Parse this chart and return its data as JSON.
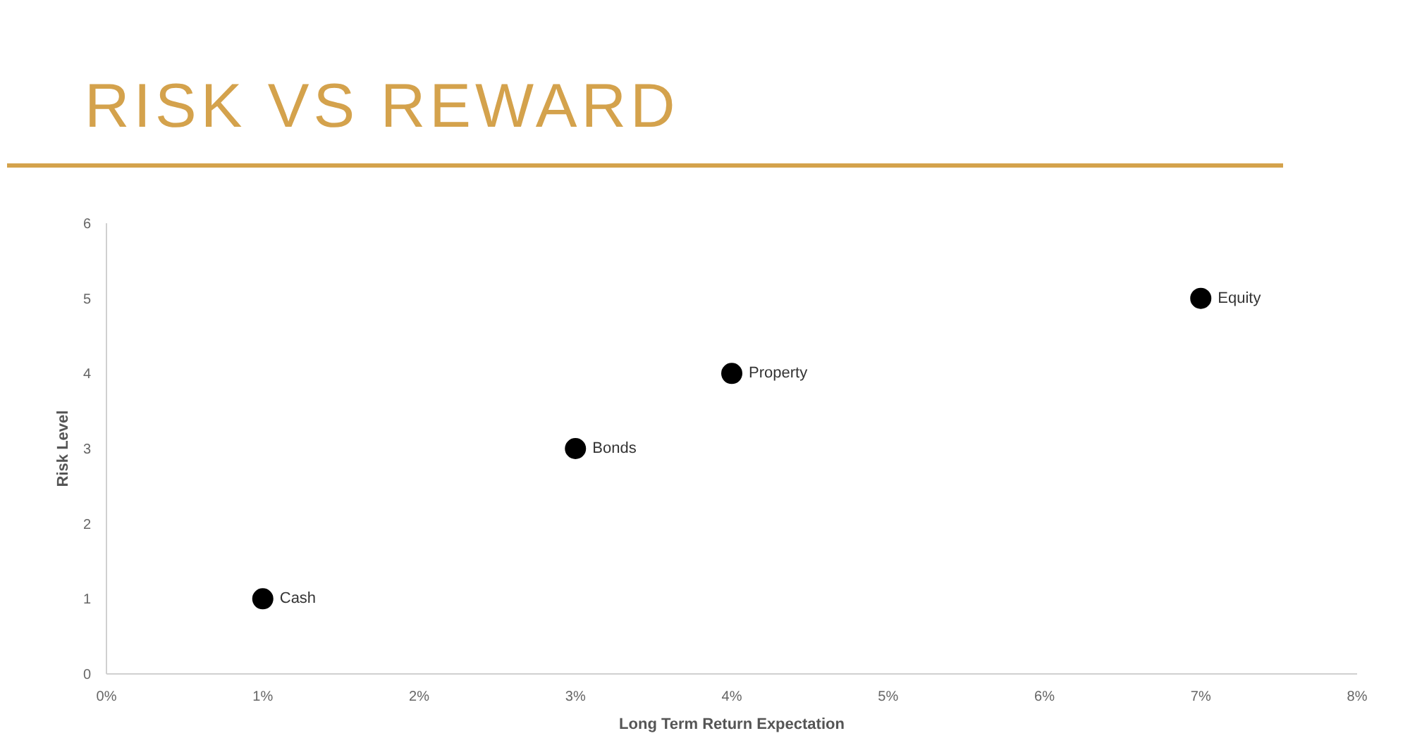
{
  "chart_data": {
    "type": "scatter",
    "title": "RISK VS REWARD",
    "xlabel": "Long Term Return Expectation",
    "ylabel": "Risk Level",
    "x": [
      1,
      3,
      4,
      7
    ],
    "series": [
      {
        "color": "#000000",
        "values": [
          1,
          3,
          4,
          5
        ]
      }
    ],
    "marker": "circle",
    "xlim": [
      0,
      8
    ],
    "xticks": [
      {
        "value": 0,
        "label": "0%"
      },
      {
        "value": 1,
        "label": "1%"
      },
      {
        "value": 2,
        "label": "2%"
      },
      {
        "value": 3,
        "label": "3%"
      },
      {
        "value": 4,
        "label": "4%"
      },
      {
        "value": 5,
        "label": "5%"
      },
      {
        "value": 6,
        "label": "6%"
      },
      {
        "value": 7,
        "label": "7%"
      },
      {
        "value": 8,
        "label": "8%"
      }
    ],
    "ylim": [
      0,
      6
    ],
    "yticks": [
      0,
      1,
      2,
      3,
      4,
      5,
      6
    ],
    "annotations": [
      {
        "text": "Cash",
        "x": 1,
        "y": 1
      },
      {
        "text": "Bonds",
        "x": 3,
        "y": 3
      },
      {
        "text": "Property",
        "x": 4,
        "y": 4
      },
      {
        "text": "Equity",
        "x": 7,
        "y": 5
      }
    ]
  }
}
